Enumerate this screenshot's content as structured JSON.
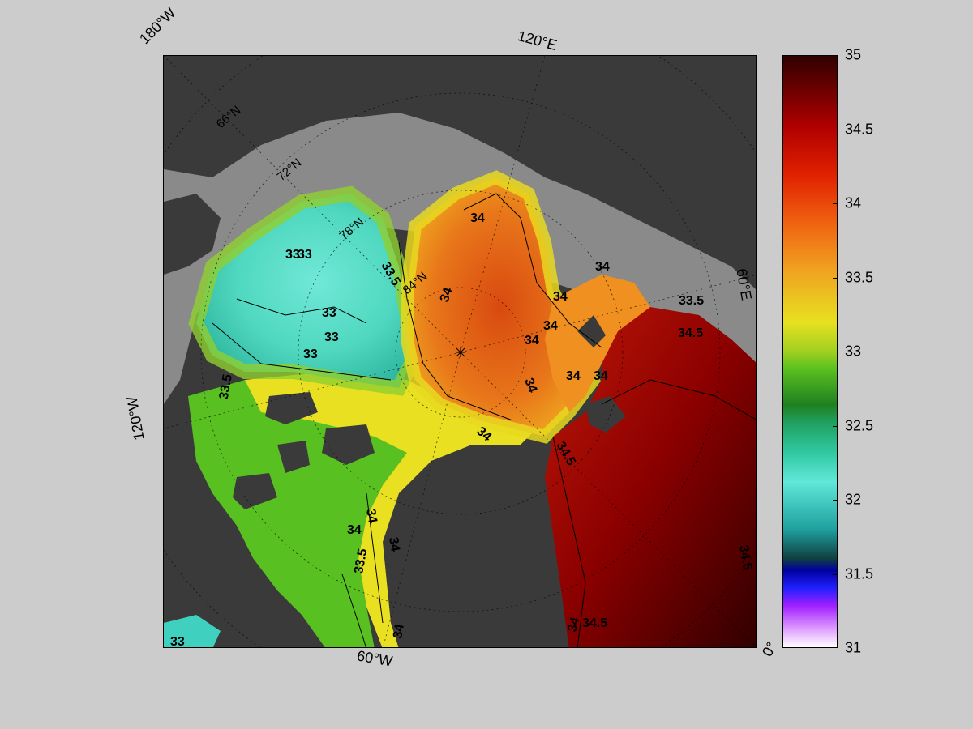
{
  "map": {
    "projection_labels": {
      "lon_180W": "180°W",
      "lon_120E": "120°E",
      "lon_60E": "60°E",
      "lon_120W": "120°W",
      "lon_60W": "60°W",
      "lon_0": "0°"
    },
    "latitude_labels": [
      "66°N",
      "72°N",
      "78°N",
      "84°N"
    ],
    "contour_labels": {
      "c33_a": "33",
      "c33_b": "33",
      "c33_c": "33",
      "c33_d": "33",
      "c33_e": "33",
      "c33_f": "33",
      "c335_a": "33.5",
      "c335_b": "33.5",
      "c335_c": "33.5",
      "c335_d": "33.5",
      "c34_a": "34",
      "c34_b": "34",
      "c34_c": "34",
      "c34_d": "34",
      "c34_e": "34",
      "c34_f": "34",
      "c34_g": "34",
      "c34_h": "34",
      "c34_i": "34",
      "c34_j": "34",
      "c34_k": "34",
      "c34_l": "34",
      "c34_m": "34",
      "c34_n": "34",
      "c34_o": "34",
      "c345_a": "34.5",
      "c345_b": "34.5",
      "c345_c": "34.5",
      "c345_d": "34.5"
    },
    "colors": {
      "land": "#3a3a3a",
      "shelf_gray": "#8a8a8a",
      "deep_red": "#3a0000"
    }
  },
  "colorbar": {
    "ticks": [
      "35",
      "34.5",
      "34",
      "33.5",
      "33",
      "32.5",
      "32",
      "31.5",
      "31"
    ],
    "min": 31,
    "max": 35
  }
}
